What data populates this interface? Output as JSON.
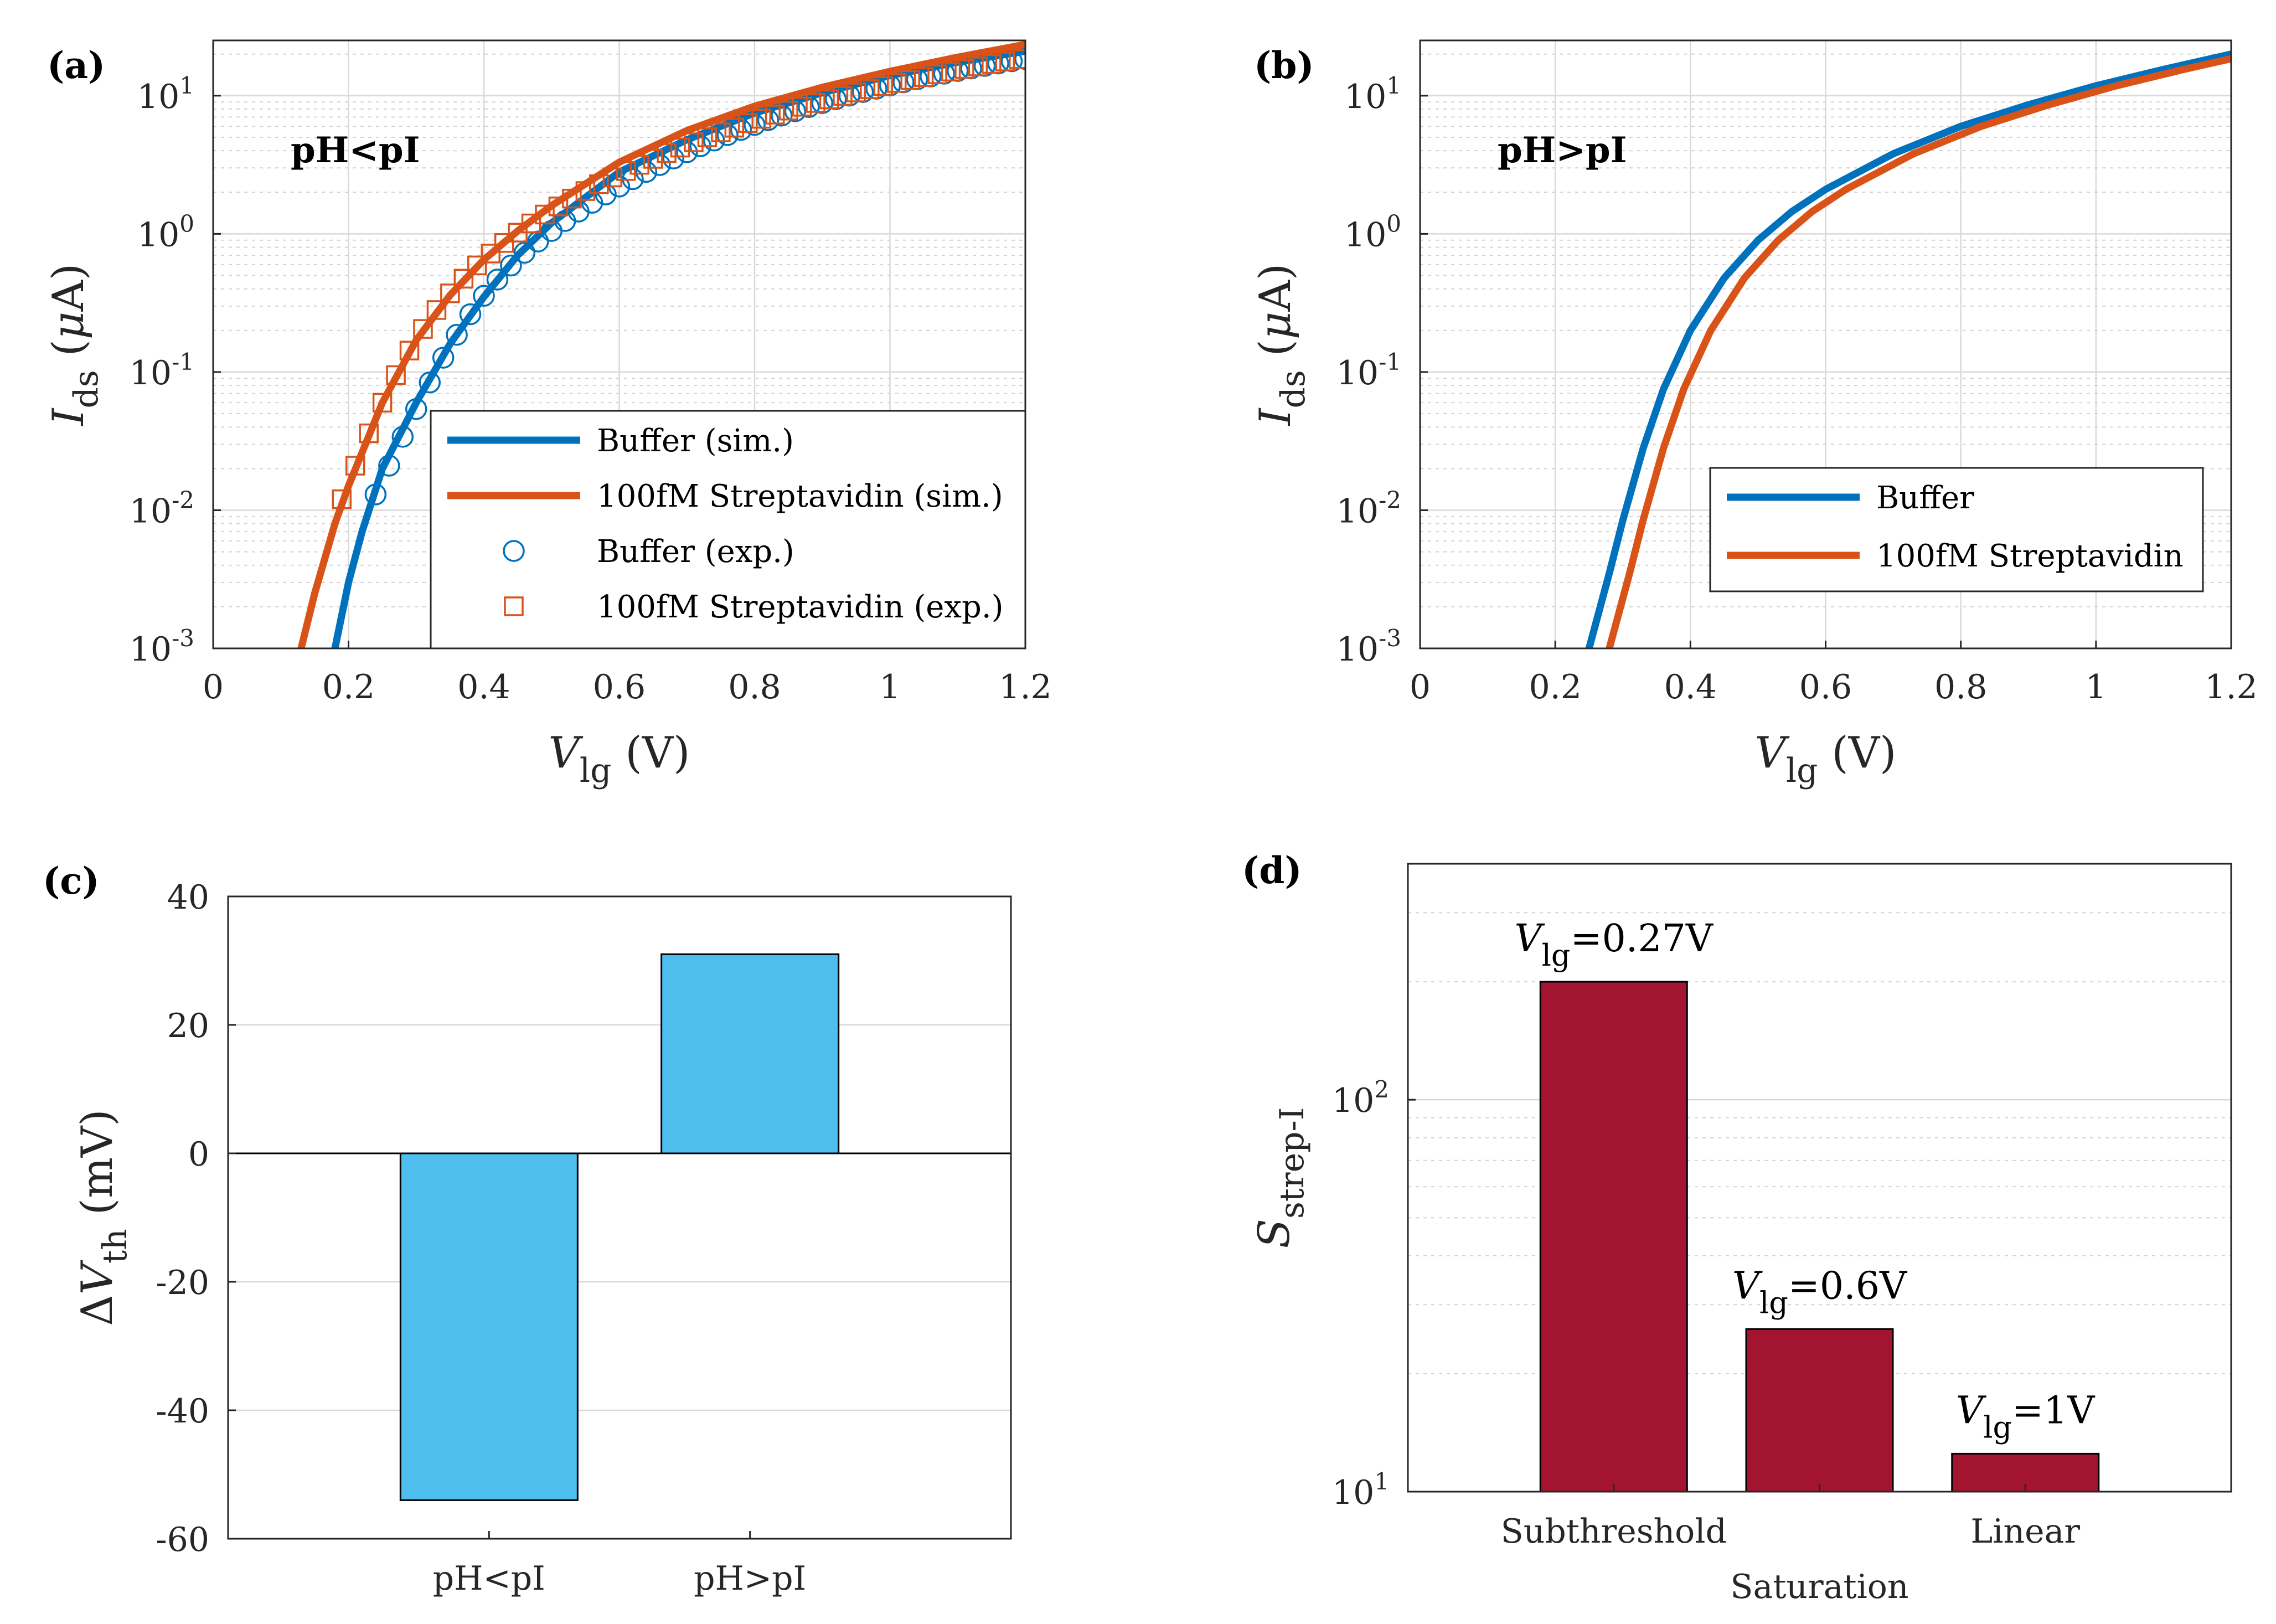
{
  "colors": {
    "blue": "#0072BD",
    "orange": "#D95319",
    "light_blue": "#4DBEEE",
    "dark_red": "#A2142F"
  },
  "chart_data": [
    {
      "type": "line",
      "panel": "(a)",
      "annotation": "pH<pI",
      "xlabel_main": "V",
      "xlabel_sub": "lg",
      "xlabel_unit": " (V)",
      "ylabel_main": "I",
      "ylabel_sub": "ds",
      "ylabel_unit": " (μA)",
      "xlim": [
        0,
        1.2
      ],
      "ylim_log10": [
        -3,
        1.4
      ],
      "yscale": "log",
      "xticks": [
        0,
        0.2,
        0.4,
        0.6,
        0.8,
        1,
        1.2
      ],
      "xtick_labels": [
        "0",
        "0.2",
        "0.4",
        "0.6",
        "0.8",
        "1",
        "1.2"
      ],
      "yticks_exp": [
        1,
        0,
        -1,
        -2,
        -3
      ],
      "ytick_mantissa": "10",
      "ytick_exponents": [
        "1",
        "0",
        "-1",
        "-2",
        "-3"
      ],
      "legend": [
        "Buffer (sim.)",
        "100fM Streptavidin (sim.)",
        "Buffer (exp.)",
        "100fM Streptavidin (exp.)"
      ],
      "series": [
        {
          "name": "Buffer (sim.)",
          "kind": "line",
          "color": "#0072BD",
          "x": [
            0.18,
            0.2,
            0.22,
            0.25,
            0.3,
            0.35,
            0.4,
            0.45,
            0.5,
            0.6,
            0.7,
            0.8,
            0.9,
            1.0,
            1.1,
            1.2
          ],
          "y": [
            0.001,
            0.003,
            0.007,
            0.02,
            0.06,
            0.16,
            0.35,
            0.7,
            1.2,
            2.8,
            4.8,
            7.5,
            10.5,
            14,
            17.5,
            21
          ]
        },
        {
          "name": "100fM Streptavidin (sim.)",
          "kind": "line",
          "color": "#D95319",
          "x": [
            0.13,
            0.15,
            0.18,
            0.2,
            0.25,
            0.3,
            0.35,
            0.4,
            0.45,
            0.5,
            0.6,
            0.7,
            0.8,
            0.9,
            1.0,
            1.1,
            1.2
          ],
          "y": [
            0.001,
            0.0025,
            0.008,
            0.015,
            0.06,
            0.17,
            0.36,
            0.65,
            1.05,
            1.6,
            3.3,
            5.6,
            8.4,
            11.5,
            15,
            19,
            23.5
          ]
        },
        {
          "name": "Buffer (exp.)",
          "kind": "circle",
          "color": "#0072BD",
          "x": [
            0.24,
            0.26,
            0.28,
            0.3,
            0.32,
            0.34,
            0.36,
            0.38,
            0.4,
            0.42,
            0.44,
            0.46,
            0.48,
            0.5,
            0.52,
            0.54,
            0.56,
            0.58,
            0.6,
            0.62,
            0.64,
            0.66,
            0.68,
            0.7,
            0.72,
            0.74,
            0.76,
            0.78,
            0.8,
            0.82,
            0.84,
            0.86,
            0.88,
            0.9,
            0.92,
            0.94,
            0.96,
            0.98,
            1.0,
            1.02,
            1.04,
            1.06,
            1.08,
            1.1,
            1.12,
            1.14,
            1.16,
            1.18,
            1.2
          ],
          "y": [
            0.013,
            0.021,
            0.034,
            0.054,
            0.084,
            0.127,
            0.186,
            0.262,
            0.356,
            0.467,
            0.59,
            0.73,
            0.88,
            1.05,
            1.24,
            1.45,
            1.68,
            1.93,
            2.2,
            2.49,
            2.81,
            3.15,
            3.51,
            3.9,
            4.31,
            4.74,
            5.19,
            5.66,
            6.15,
            6.66,
            7.18,
            7.72,
            8.28,
            8.85,
            9.43,
            10.02,
            10.63,
            11.24,
            11.87,
            12.5,
            13.14,
            13.79,
            14.44,
            15.1,
            15.76,
            16.43,
            17.1,
            17.77,
            18.45
          ]
        },
        {
          "name": "100fM Streptavidin (exp.)",
          "kind": "square",
          "color": "#D95319",
          "x": [
            0.19,
            0.21,
            0.23,
            0.25,
            0.27,
            0.29,
            0.31,
            0.33,
            0.35,
            0.37,
            0.39,
            0.41,
            0.43,
            0.45,
            0.47,
            0.49,
            0.51,
            0.53,
            0.55,
            0.57,
            0.59,
            0.61,
            0.63,
            0.65,
            0.67,
            0.69,
            0.71,
            0.73,
            0.75,
            0.77,
            0.79,
            0.81,
            0.83,
            0.85,
            0.87,
            0.89,
            0.91,
            0.93,
            0.95,
            0.97,
            0.99,
            1.01,
            1.03,
            1.05,
            1.07,
            1.09,
            1.11,
            1.13,
            1.15,
            1.17,
            1.19
          ],
          "y": [
            0.012,
            0.021,
            0.036,
            0.06,
            0.095,
            0.143,
            0.205,
            0.281,
            0.371,
            0.474,
            0.591,
            0.72,
            0.86,
            1.02,
            1.19,
            1.38,
            1.58,
            1.8,
            2.04,
            2.29,
            2.56,
            2.85,
            3.16,
            3.49,
            3.84,
            4.21,
            4.6,
            5.0,
            5.43,
            5.87,
            6.33,
            6.8,
            7.29,
            7.8,
            8.32,
            8.86,
            9.41,
            9.97,
            10.55,
            11.14,
            11.75,
            12.36,
            12.99,
            13.63,
            14.28,
            14.94,
            15.61,
            16.29,
            16.98,
            17.68,
            18.39
          ]
        }
      ]
    },
    {
      "type": "line",
      "panel": "(b)",
      "annotation": "pH>pI",
      "xlabel_main": "V",
      "xlabel_sub": "lg",
      "xlabel_unit": " (V)",
      "ylabel_main": "I",
      "ylabel_sub": "ds",
      "ylabel_unit": " (μA)",
      "xlim": [
        0,
        1.2
      ],
      "ylim_log10": [
        -3,
        1.4
      ],
      "yscale": "log",
      "xticks": [
        0,
        0.2,
        0.4,
        0.6,
        0.8,
        1,
        1.2
      ],
      "xtick_labels": [
        "0",
        "0.2",
        "0.4",
        "0.6",
        "0.8",
        "1",
        "1.2"
      ],
      "yticks_exp": [
        1,
        0,
        -1,
        -2,
        -3
      ],
      "ytick_mantissa": "10",
      "ytick_exponents": [
        "1",
        "0",
        "-1",
        "-2",
        "-3"
      ],
      "legend": [
        "Buffer",
        "100fM Streptavidin"
      ],
      "series": [
        {
          "name": "Buffer",
          "kind": "line",
          "color": "#0072BD",
          "x": [
            0.25,
            0.28,
            0.3,
            0.33,
            0.36,
            0.4,
            0.45,
            0.5,
            0.55,
            0.6,
            0.7,
            0.8,
            0.9,
            1.0,
            1.1,
            1.2
          ],
          "y": [
            0.001,
            0.0035,
            0.0085,
            0.028,
            0.075,
            0.2,
            0.48,
            0.9,
            1.45,
            2.1,
            3.8,
            6.0,
            8.6,
            11.8,
            15.5,
            20
          ]
        },
        {
          "name": "100fM Streptavidin",
          "kind": "line",
          "color": "#D95319",
          "x": [
            0.28,
            0.31,
            0.33,
            0.36,
            0.39,
            0.43,
            0.48,
            0.53,
            0.58,
            0.63,
            0.73,
            0.83,
            0.93,
            1.03,
            1.13,
            1.2
          ],
          "y": [
            0.001,
            0.0035,
            0.0085,
            0.028,
            0.075,
            0.2,
            0.48,
            0.9,
            1.45,
            2.1,
            3.8,
            6.0,
            8.6,
            11.8,
            15.5,
            18.5
          ]
        }
      ]
    },
    {
      "type": "bar",
      "panel": "(c)",
      "categories": [
        "pH<pI",
        "pH>pI"
      ],
      "values": [
        -54,
        31
      ],
      "ylim": [
        -60,
        40
      ],
      "yticks": [
        40,
        20,
        0,
        -20,
        -40,
        -60
      ],
      "ytick_labels": [
        "40",
        "20",
        "0",
        "-20",
        "-40",
        "-60"
      ],
      "ylabel_prefix": "Δ",
      "ylabel_main": "V",
      "ylabel_sub": "th",
      "ylabel_unit": " (mV)",
      "color": "#4DBEEE"
    },
    {
      "type": "bar",
      "panel": "(d)",
      "yscale": "log",
      "categories": [
        "Subthreshold",
        "Saturation",
        "Linear"
      ],
      "values": [
        200,
        26,
        12.5
      ],
      "ylim": [
        10,
        400
      ],
      "yticks_exp": [
        2,
        1
      ],
      "ytick_mantissa": "10",
      "ytick_exponents": [
        "2",
        "1"
      ],
      "ylabel_main": "S",
      "ylabel_sub": "strep-I",
      "color": "#A2142F",
      "bar_annotations": [
        {
          "main": "V",
          "sub": "lg",
          "value": "=0.27V"
        },
        {
          "main": "V",
          "sub": "lg",
          "value": "=0.6V"
        },
        {
          "main": "V",
          "sub": "lg",
          "value": "=1V"
        }
      ]
    }
  ]
}
